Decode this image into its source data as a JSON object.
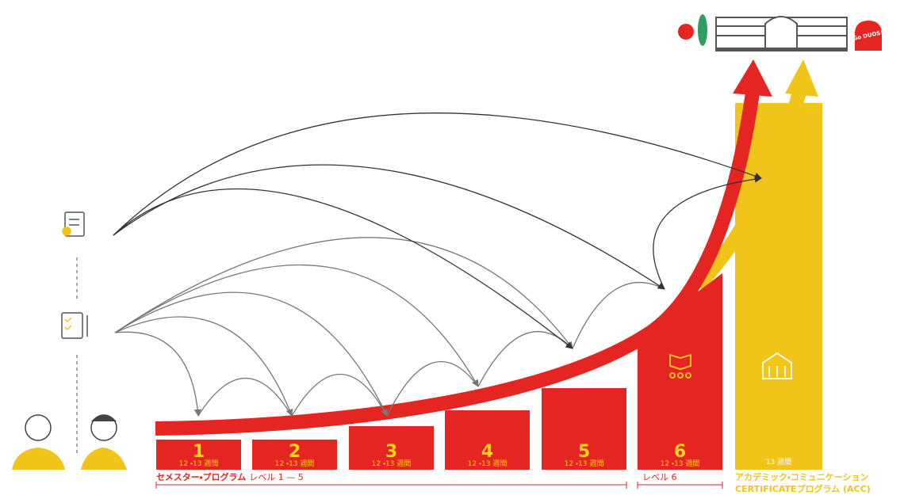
{
  "levels": [
    {
      "number": "1",
      "duration": "12 ・13 週間"
    },
    {
      "number": "2",
      "duration": "12 ・13 週間"
    },
    {
      "number": "3",
      "duration": "12 ・13 週間"
    },
    {
      "number": "4",
      "duration": "12 ・13 週間"
    },
    {
      "number": "5",
      "duration": "12 ・13 週間"
    },
    {
      "number": "6",
      "duration": "12 ・13 週間"
    }
  ],
  "acc": {
    "duration": "13 週間",
    "label_line1": "アカデミック・コミュニケーション",
    "label_line2": "CERTIFICATEプログラム (ACC)"
  },
  "brackets": {
    "semester_bold": "セメスター・プログラム",
    "semester_levels": "レベル 1 — 5",
    "level6": "レベル 6"
  },
  "sign": "Go DUOS!"
}
